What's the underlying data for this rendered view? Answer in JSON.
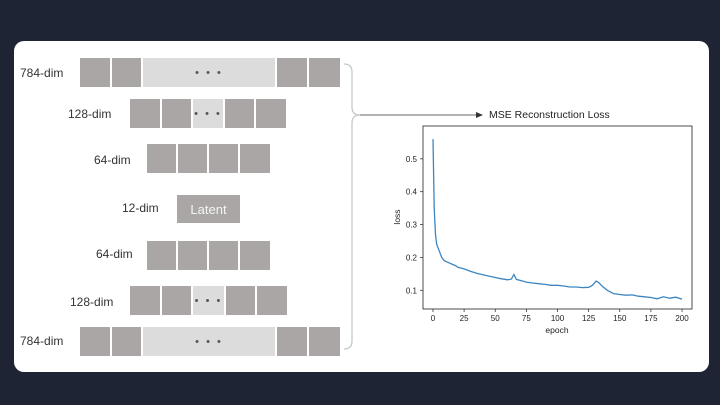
{
  "layers": [
    {
      "label": "784-dim",
      "dots": "• • •"
    },
    {
      "label": "128-dim",
      "dots": "• • •"
    },
    {
      "label": "64-dim"
    },
    {
      "label": "12-dim",
      "box": "Latent"
    },
    {
      "label": "64-dim"
    },
    {
      "label": "128-dim",
      "dots": "• • •"
    },
    {
      "label": "784-dim",
      "dots": "• • •"
    }
  ],
  "arrow_label": "MSE Reconstruction Loss",
  "chart_data": {
    "type": "line",
    "xlabel": "epoch",
    "ylabel": "loss",
    "xlim": [
      -8,
      208
    ],
    "ylim": [
      0.043,
      0.6
    ],
    "xticks": [
      0,
      25,
      50,
      75,
      100,
      125,
      150,
      175,
      200
    ],
    "yticks": [
      0.1,
      0.2,
      0.3,
      0.4,
      0.5
    ],
    "ytick_labels": [
      "0.1",
      "0.2",
      "0.3",
      "0.4",
      "0.5"
    ],
    "color": "#3b86c2",
    "series": [
      {
        "x": [
          0,
          1,
          2,
          3,
          5,
          7,
          9,
          12,
          15,
          18,
          20,
          25,
          30,
          35,
          40,
          45,
          50,
          55,
          60,
          63,
          65,
          67,
          70,
          75,
          80,
          85,
          90,
          95,
          100,
          105,
          110,
          115,
          120,
          125,
          128,
          131,
          133,
          136,
          140,
          145,
          150,
          155,
          160,
          165,
          170,
          175,
          180,
          185,
          190,
          195,
          200
        ],
        "y": [
          0.56,
          0.35,
          0.27,
          0.24,
          0.22,
          0.2,
          0.19,
          0.185,
          0.18,
          0.175,
          0.17,
          0.165,
          0.158,
          0.152,
          0.147,
          0.143,
          0.139,
          0.135,
          0.132,
          0.134,
          0.148,
          0.133,
          0.13,
          0.125,
          0.122,
          0.12,
          0.118,
          0.115,
          0.115,
          0.113,
          0.11,
          0.11,
          0.108,
          0.109,
          0.115,
          0.128,
          0.124,
          0.112,
          0.1,
          0.09,
          0.087,
          0.085,
          0.086,
          0.082,
          0.08,
          0.078,
          0.074,
          0.08,
          0.076,
          0.079,
          0.073
        ]
      }
    ]
  }
}
